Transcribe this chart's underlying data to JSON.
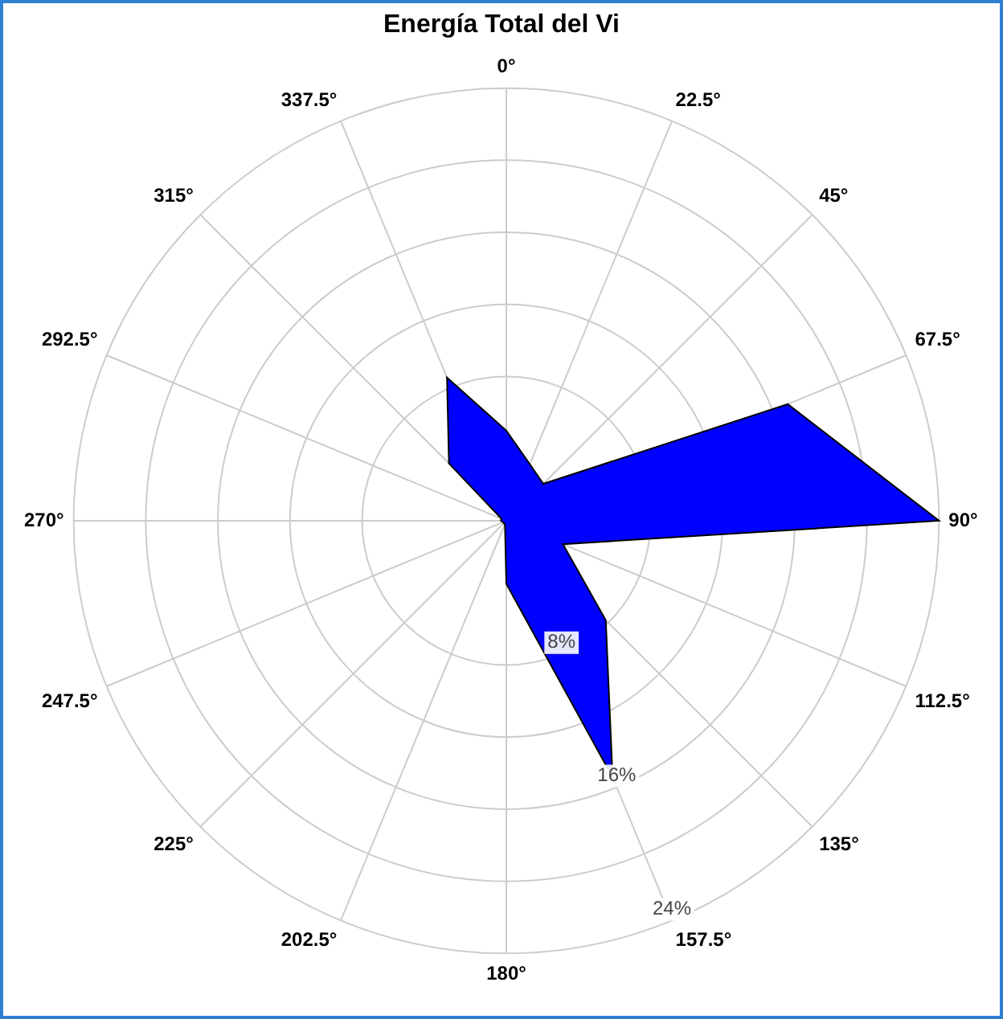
{
  "chart_data": {
    "type": "radar",
    "title": "Energía Total del Vi",
    "categories": [
      "0°",
      "22.5°",
      "45°",
      "67.5°",
      "90°",
      "112.5°",
      "135°",
      "157.5°",
      "180°",
      "202.5°",
      "225°",
      "247.5°",
      "270°",
      "292.5°",
      "315°",
      "337.5°"
    ],
    "series": [
      {
        "color": "#0000ff",
        "values": [
          5.0,
          3.4,
          2.9,
          16.9,
          24,
          3.4,
          7.8,
          15.4,
          3.5,
          0.2,
          0.2,
          0.2,
          0.3,
          0.3,
          4.5,
          8.6
        ]
      }
    ],
    "ylim": [
      0,
      24
    ],
    "yticks": [
      {
        "value": 8,
        "label": "8%"
      },
      {
        "value": 16,
        "label": "16%"
      },
      {
        "value": 24,
        "label": "24%"
      }
    ],
    "grid": true,
    "marker": "none"
  }
}
